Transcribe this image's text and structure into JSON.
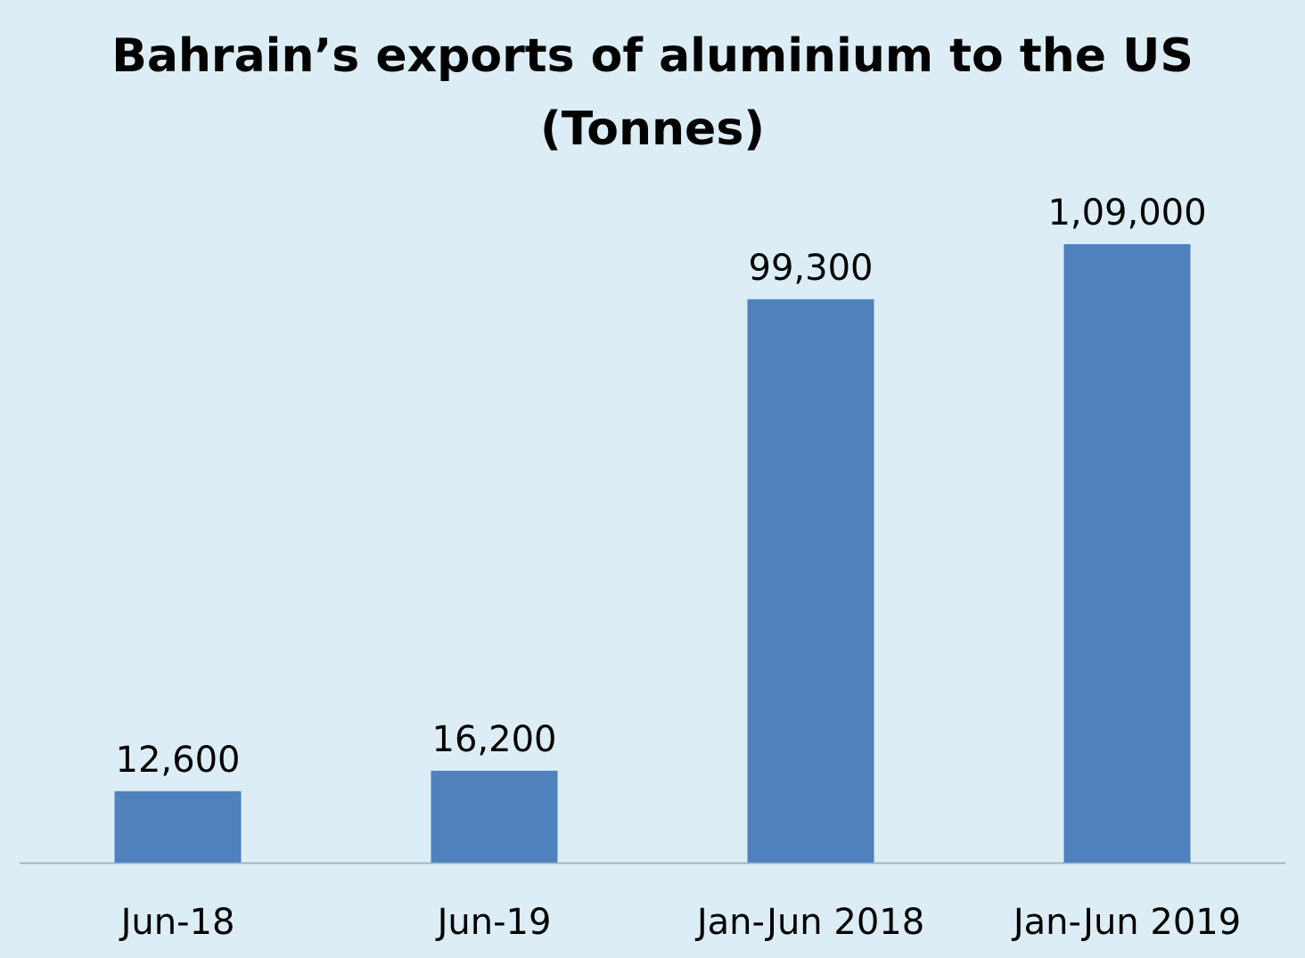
{
  "chart_data": {
    "type": "bar",
    "title_lines": [
      "Bahrain’s exports of aluminium to the US",
      "(Tonnes)"
    ],
    "categories": [
      "Jun-18",
      "Jun-19",
      "Jan-Jun 2018",
      "Jan-Jun 2019"
    ],
    "values": [
      12600,
      16200,
      99300,
      109000
    ],
    "value_labels": [
      "12,600",
      "16,200",
      "99,300",
      "1,09,000"
    ],
    "xlabel": "",
    "ylabel": "",
    "ylim": [
      0,
      109000
    ],
    "grid": false,
    "legend": "none",
    "colors": {
      "bar": "#4f81bd",
      "background": "#dcedf5",
      "axis": "#8ea9c8"
    }
  }
}
